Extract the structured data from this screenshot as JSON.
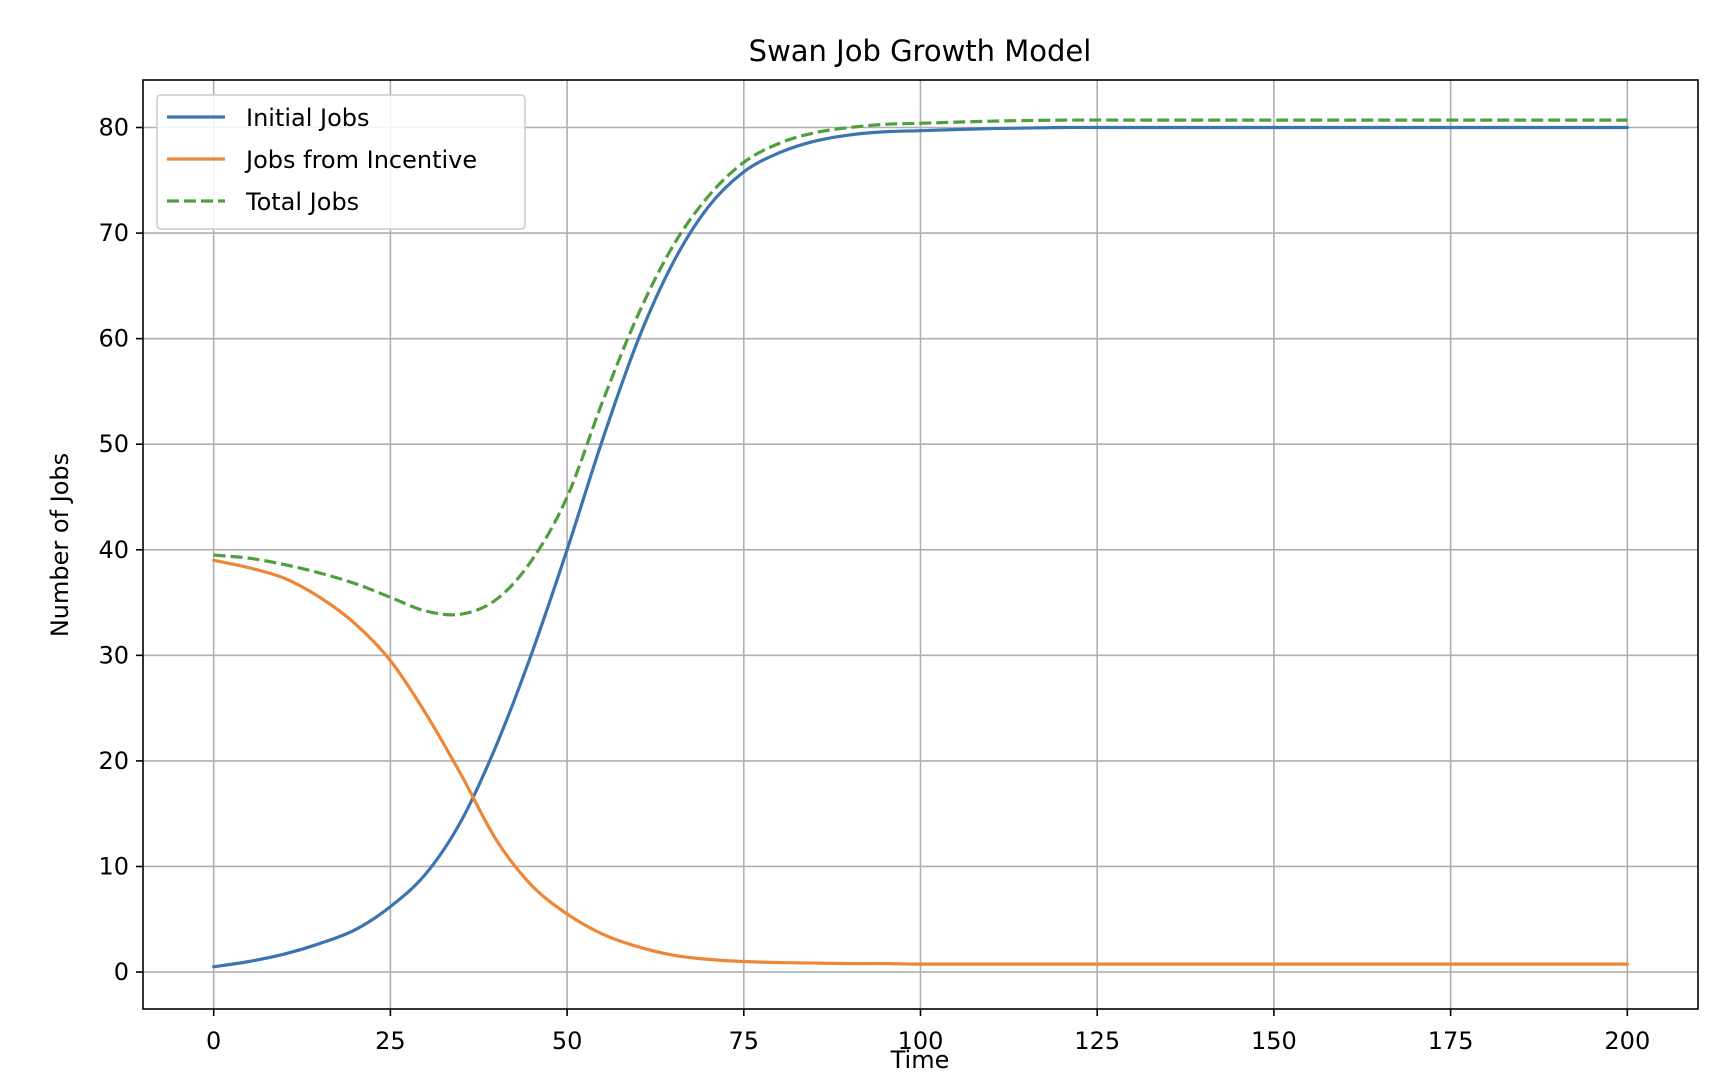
{
  "chart_data": {
    "type": "line",
    "title": "Swan Job Growth Model",
    "xlabel": "Time",
    "ylabel": "Number of Jobs",
    "xlim": [
      -10,
      210
    ],
    "ylim": [
      -3.5,
      84.5
    ],
    "xticks": [
      0,
      25,
      50,
      75,
      100,
      125,
      150,
      175,
      200
    ],
    "yticks": [
      0,
      10,
      20,
      30,
      40,
      50,
      60,
      70,
      80
    ],
    "grid": true,
    "legend_position": "top-left",
    "x": [
      0,
      5,
      10,
      15,
      20,
      25,
      30,
      35,
      40,
      45,
      50,
      55,
      60,
      65,
      70,
      75,
      80,
      85,
      90,
      95,
      100,
      110,
      120,
      130,
      140,
      150,
      160,
      170,
      180,
      190,
      200
    ],
    "series": [
      {
        "name": "Initial Jobs",
        "color": "#3b75af",
        "dash": "solid",
        "values": [
          0.5,
          1.0,
          1.7,
          2.7,
          4.0,
          6.2,
          9.3,
          14.3,
          21.5,
          30.2,
          40.0,
          50.4,
          59.8,
          67.2,
          72.5,
          75.8,
          77.6,
          78.7,
          79.3,
          79.6,
          79.7,
          79.9,
          80.0,
          80.0,
          80.0,
          80.0,
          80.0,
          80.0,
          80.0,
          80.0,
          80.0
        ]
      },
      {
        "name": "Jobs from Incentive",
        "color": "#ef8636",
        "dash": "solid",
        "values": [
          39.0,
          38.3,
          37.3,
          35.5,
          33.0,
          29.5,
          24.5,
          18.7,
          12.5,
          8.2,
          5.5,
          3.6,
          2.4,
          1.6,
          1.2,
          1.0,
          0.9,
          0.85,
          0.8,
          0.8,
          0.75,
          0.75,
          0.75,
          0.75,
          0.75,
          0.75,
          0.75,
          0.75,
          0.75,
          0.75,
          0.75
        ]
      },
      {
        "name": "Total Jobs",
        "color": "#519e3e",
        "dash": "dashed",
        "values": [
          39.5,
          39.2,
          38.6,
          37.8,
          36.8,
          35.5,
          34.2,
          33.9,
          35.3,
          39.0,
          45.0,
          54.0,
          62.2,
          68.8,
          73.5,
          76.7,
          78.5,
          79.5,
          80.0,
          80.3,
          80.4,
          80.6,
          80.7,
          80.7,
          80.7,
          80.7,
          80.7,
          80.7,
          80.7,
          80.7,
          80.7
        ]
      }
    ]
  }
}
